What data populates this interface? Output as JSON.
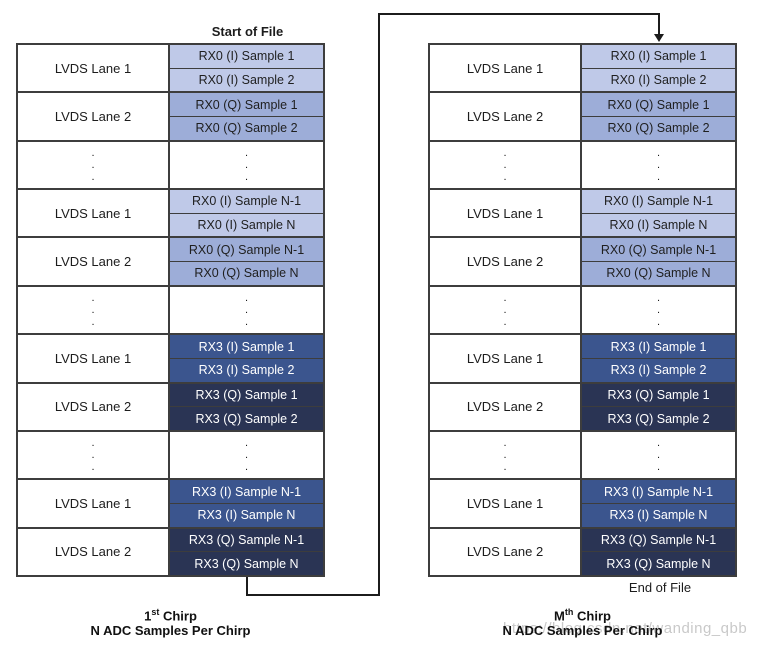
{
  "colors": {
    "border": "#3d3d3d",
    "line": "#1c1c1c",
    "watermark": "#c9c9c9",
    "cell_styles": {
      "rx0_i": {
        "bg": "#bfc9e8",
        "fg": "#1f1f1f"
      },
      "rx0_q": {
        "bg": "#9dadd8",
        "fg": "#1f1f1f"
      },
      "rx3_i": {
        "bg": "#3b558e",
        "fg": "#ffffff"
      },
      "rx3_q": {
        "bg": "#2a3454",
        "fg": "#ffffff"
      }
    }
  },
  "misc": {
    "vertical_ellipsis": ".\n.\n."
  },
  "left_table": {
    "title": "Start of File",
    "caption": {
      "base": "1",
      "sup": "st",
      "rest": " Chirp"
    },
    "caption_line2": "N ADC Samples Per Chirp",
    "rows": [
      {
        "type": "lane",
        "lane": "LVDS Lane 1",
        "cells": [
          {
            "text": "RX0 (I) Sample 1",
            "style": "rx0_i"
          },
          {
            "text": "RX0 (I) Sample 2",
            "style": "rx0_i"
          }
        ]
      },
      {
        "type": "lane",
        "lane": "LVDS Lane 2",
        "cells": [
          {
            "text": "RX0 (Q) Sample 1",
            "style": "rx0_q"
          },
          {
            "text": "RX0 (Q) Sample 2",
            "style": "rx0_q"
          }
        ]
      },
      {
        "type": "dots"
      },
      {
        "type": "lane",
        "lane": "LVDS Lane 1",
        "cells": [
          {
            "text": "RX0 (I) Sample N-1",
            "style": "rx0_i"
          },
          {
            "text": "RX0 (I) Sample N",
            "style": "rx0_i"
          }
        ]
      },
      {
        "type": "lane",
        "lane": "LVDS Lane 2",
        "cells": [
          {
            "text": "RX0 (Q) Sample N-1",
            "style": "rx0_q"
          },
          {
            "text": "RX0 (Q) Sample N",
            "style": "rx0_q"
          }
        ]
      },
      {
        "type": "dots"
      },
      {
        "type": "lane",
        "lane": "LVDS Lane 1",
        "cells": [
          {
            "text": "RX3 (I) Sample 1",
            "style": "rx3_i"
          },
          {
            "text": "RX3 (I) Sample 2",
            "style": "rx3_i"
          }
        ]
      },
      {
        "type": "lane",
        "lane": "LVDS Lane 2",
        "cells": [
          {
            "text": "RX3 (Q) Sample 1",
            "style": "rx3_q"
          },
          {
            "text": "RX3 (Q) Sample 2",
            "style": "rx3_q"
          }
        ]
      },
      {
        "type": "dots"
      },
      {
        "type": "lane",
        "lane": "LVDS Lane 1",
        "cells": [
          {
            "text": "RX3 (I) Sample N-1",
            "style": "rx3_i"
          },
          {
            "text": "RX3 (I) Sample N",
            "style": "rx3_i"
          }
        ]
      },
      {
        "type": "lane",
        "lane": "LVDS Lane 2",
        "cells": [
          {
            "text": "RX3 (Q) Sample N-1",
            "style": "rx3_q"
          },
          {
            "text": "RX3 (Q) Sample N",
            "style": "rx3_q"
          }
        ]
      }
    ]
  },
  "right_table": {
    "end_label": "End of File",
    "caption": {
      "base": "M",
      "sup": "th",
      "rest": " Chirp"
    },
    "caption_line2": "N ADC Samples Per Chirp",
    "rows": [
      {
        "type": "lane",
        "lane": "LVDS Lane 1",
        "cells": [
          {
            "text": "RX0 (I) Sample 1",
            "style": "rx0_i"
          },
          {
            "text": "RX0 (I) Sample 2",
            "style": "rx0_i"
          }
        ]
      },
      {
        "type": "lane",
        "lane": "LVDS Lane 2",
        "cells": [
          {
            "text": "RX0 (Q) Sample 1",
            "style": "rx0_q"
          },
          {
            "text": "RX0 (Q) Sample 2",
            "style": "rx0_q"
          }
        ]
      },
      {
        "type": "dots"
      },
      {
        "type": "lane",
        "lane": "LVDS Lane 1",
        "cells": [
          {
            "text": "RX0 (I) Sample N-1",
            "style": "rx0_i"
          },
          {
            "text": "RX0 (I) Sample N",
            "style": "rx0_i"
          }
        ]
      },
      {
        "type": "lane",
        "lane": "LVDS Lane 2",
        "cells": [
          {
            "text": "RX0 (Q) Sample N-1",
            "style": "rx0_q"
          },
          {
            "text": "RX0 (Q) Sample N",
            "style": "rx0_q"
          }
        ]
      },
      {
        "type": "dots"
      },
      {
        "type": "lane",
        "lane": "LVDS Lane 1",
        "cells": [
          {
            "text": "RX3 (I) Sample 1",
            "style": "rx3_i"
          },
          {
            "text": "RX3 (I) Sample 2",
            "style": "rx3_i"
          }
        ]
      },
      {
        "type": "lane",
        "lane": "LVDS Lane 2",
        "cells": [
          {
            "text": "RX3 (Q) Sample 1",
            "style": "rx3_q"
          },
          {
            "text": "RX3 (Q) Sample 2",
            "style": "rx3_q"
          }
        ]
      },
      {
        "type": "dots"
      },
      {
        "type": "lane",
        "lane": "LVDS Lane 1",
        "cells": [
          {
            "text": "RX3 (I) Sample N-1",
            "style": "rx3_i"
          },
          {
            "text": "RX3 (I) Sample N",
            "style": "rx3_i"
          }
        ]
      },
      {
        "type": "lane",
        "lane": "LVDS Lane 2",
        "cells": [
          {
            "text": "RX3 (Q) Sample N-1",
            "style": "rx3_q"
          },
          {
            "text": "RX3 (Q) Sample N",
            "style": "rx3_q"
          }
        ]
      }
    ]
  },
  "watermark": "https://blog.csdn.net/wanding_qbb"
}
